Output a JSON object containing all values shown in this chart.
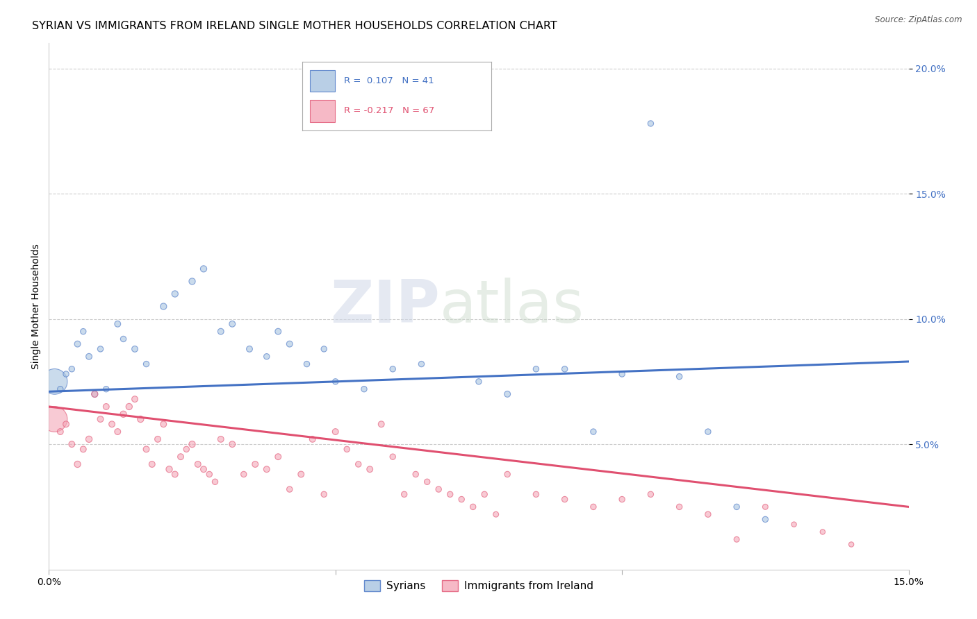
{
  "title": "SYRIAN VS IMMIGRANTS FROM IRELAND SINGLE MOTHER HOUSEHOLDS CORRELATION CHART",
  "source": "Source: ZipAtlas.com",
  "ylabel": "Single Mother Households",
  "watermark": "ZIPatlas",
  "xlim": [
    0.0,
    0.15
  ],
  "ylim": [
    0.0,
    0.21
  ],
  "xticks": [
    0.0,
    0.05,
    0.1,
    0.15
  ],
  "xticklabels": [
    "0.0%",
    "",
    "",
    "15.0%"
  ],
  "yticks_right": [
    0.05,
    0.1,
    0.15,
    0.2
  ],
  "yticks_right_labels": [
    "5.0%",
    "10.0%",
    "15.0%",
    "20.0%"
  ],
  "color_syrian": "#a8c4e0",
  "color_ireland": "#f4a8b8",
  "color_line_syrian": "#4472c4",
  "color_line_ireland": "#e05070",
  "label_syrian": "Syrians",
  "label_ireland": "Immigrants from Ireland",
  "syrians_x": [
    0.001,
    0.002,
    0.003,
    0.004,
    0.005,
    0.006,
    0.007,
    0.008,
    0.009,
    0.01,
    0.012,
    0.013,
    0.015,
    0.017,
    0.02,
    0.022,
    0.025,
    0.027,
    0.03,
    0.032,
    0.035,
    0.038,
    0.04,
    0.042,
    0.045,
    0.048,
    0.05,
    0.055,
    0.06,
    0.065,
    0.075,
    0.08,
    0.085,
    0.09,
    0.095,
    0.1,
    0.105,
    0.11,
    0.115,
    0.12,
    0.125
  ],
  "syrians_y": [
    0.075,
    0.072,
    0.078,
    0.08,
    0.09,
    0.095,
    0.085,
    0.07,
    0.088,
    0.072,
    0.098,
    0.092,
    0.088,
    0.082,
    0.105,
    0.11,
    0.115,
    0.12,
    0.095,
    0.098,
    0.088,
    0.085,
    0.095,
    0.09,
    0.082,
    0.088,
    0.075,
    0.072,
    0.08,
    0.082,
    0.075,
    0.07,
    0.08,
    0.08,
    0.055,
    0.078,
    0.178,
    0.077,
    0.055,
    0.025,
    0.02
  ],
  "syrians_size": [
    350,
    18,
    18,
    18,
    20,
    18,
    20,
    20,
    18,
    18,
    20,
    18,
    20,
    18,
    22,
    22,
    22,
    22,
    20,
    20,
    20,
    18,
    20,
    20,
    18,
    18,
    18,
    18,
    18,
    18,
    18,
    20,
    18,
    18,
    18,
    18,
    18,
    18,
    18,
    18,
    18
  ],
  "ireland_x": [
    0.001,
    0.002,
    0.003,
    0.004,
    0.005,
    0.006,
    0.007,
    0.008,
    0.009,
    0.01,
    0.011,
    0.012,
    0.013,
    0.014,
    0.015,
    0.016,
    0.017,
    0.018,
    0.019,
    0.02,
    0.021,
    0.022,
    0.023,
    0.024,
    0.025,
    0.026,
    0.027,
    0.028,
    0.029,
    0.03,
    0.032,
    0.034,
    0.036,
    0.038,
    0.04,
    0.042,
    0.044,
    0.046,
    0.048,
    0.05,
    0.052,
    0.054,
    0.056,
    0.058,
    0.06,
    0.062,
    0.064,
    0.066,
    0.068,
    0.07,
    0.072,
    0.074,
    0.076,
    0.078,
    0.08,
    0.085,
    0.09,
    0.095,
    0.1,
    0.105,
    0.11,
    0.115,
    0.12,
    0.125,
    0.13,
    0.135,
    0.14
  ],
  "ireland_y": [
    0.06,
    0.055,
    0.058,
    0.05,
    0.042,
    0.048,
    0.052,
    0.07,
    0.06,
    0.065,
    0.058,
    0.055,
    0.062,
    0.065,
    0.068,
    0.06,
    0.048,
    0.042,
    0.052,
    0.058,
    0.04,
    0.038,
    0.045,
    0.048,
    0.05,
    0.042,
    0.04,
    0.038,
    0.035,
    0.052,
    0.05,
    0.038,
    0.042,
    0.04,
    0.045,
    0.032,
    0.038,
    0.052,
    0.03,
    0.055,
    0.048,
    0.042,
    0.04,
    0.058,
    0.045,
    0.03,
    0.038,
    0.035,
    0.032,
    0.03,
    0.028,
    0.025,
    0.03,
    0.022,
    0.038,
    0.03,
    0.028,
    0.025,
    0.028,
    0.03,
    0.025,
    0.022,
    0.012,
    0.025,
    0.018,
    0.015,
    0.01
  ],
  "ireland_size": [
    350,
    20,
    20,
    20,
    22,
    20,
    22,
    22,
    20,
    20,
    20,
    20,
    22,
    22,
    20,
    22,
    20,
    20,
    20,
    20,
    22,
    20,
    20,
    18,
    22,
    20,
    20,
    18,
    18,
    20,
    20,
    18,
    20,
    20,
    20,
    18,
    20,
    20,
    18,
    20,
    18,
    18,
    20,
    20,
    18,
    18,
    18,
    18,
    18,
    18,
    18,
    18,
    18,
    16,
    18,
    18,
    18,
    18,
    18,
    18,
    18,
    18,
    16,
    16,
    14,
    14,
    14
  ],
  "trend_syrian_start": 0.071,
  "trend_syrian_end": 0.083,
  "trend_ireland_start": 0.065,
  "trend_ireland_end": 0.025,
  "grid_color": "#cccccc",
  "bg_color": "#ffffff",
  "title_fontsize": 11.5,
  "axis_label_fontsize": 10,
  "tick_fontsize": 10,
  "legend_fontsize": 11
}
